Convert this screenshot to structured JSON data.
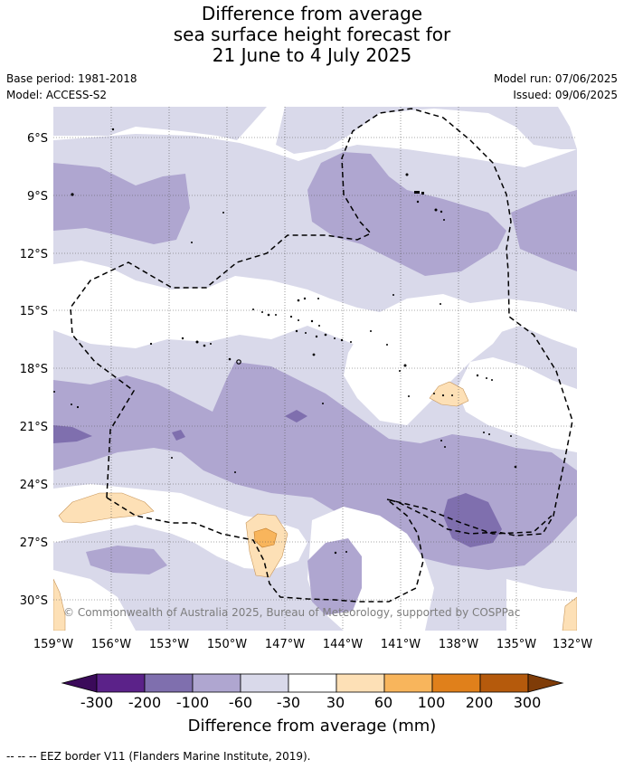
{
  "title": {
    "line1": "Difference from average",
    "line2": "sea surface height forecast for",
    "line3": "21 June to 4 July 2025"
  },
  "meta": {
    "base_period": "Base period: 1981-2018",
    "model": "Model: ACCESS-S2",
    "model_run": "Model run: 07/06/2025",
    "issued": "Issued: 09/06/2025"
  },
  "map": {
    "lat_labels": [
      "6°S",
      "9°S",
      "12°S",
      "15°S",
      "18°S",
      "21°S",
      "24°S",
      "27°S",
      "30°S"
    ],
    "lon_labels": [
      "159°W",
      "156°W",
      "153°W",
      "150°W",
      "147°W",
      "144°W",
      "141°W",
      "138°W",
      "135°W",
      "132°W"
    ],
    "copyright": "© Commonwealth of Australia 2025, Bureau of Meteorology, supported by COSPPac"
  },
  "colorbar": {
    "ticks": [
      "-300",
      "-200",
      "-100",
      "-60",
      "-30",
      "30",
      "60",
      "100",
      "200",
      "300"
    ],
    "colors": [
      "#3b0a5a",
      "#5b2289",
      "#7f6fae",
      "#afa6d0",
      "#d9d9ea",
      "#ffffff",
      "#fde0b6",
      "#f8b55c",
      "#e0801b",
      "#b55a0c",
      "#7f3c08"
    ],
    "title": "Difference from average (mm)"
  },
  "footer": {
    "eez": "--  --  -- EEZ border V11 (Flanders Marine Institute, 2019)."
  }
}
